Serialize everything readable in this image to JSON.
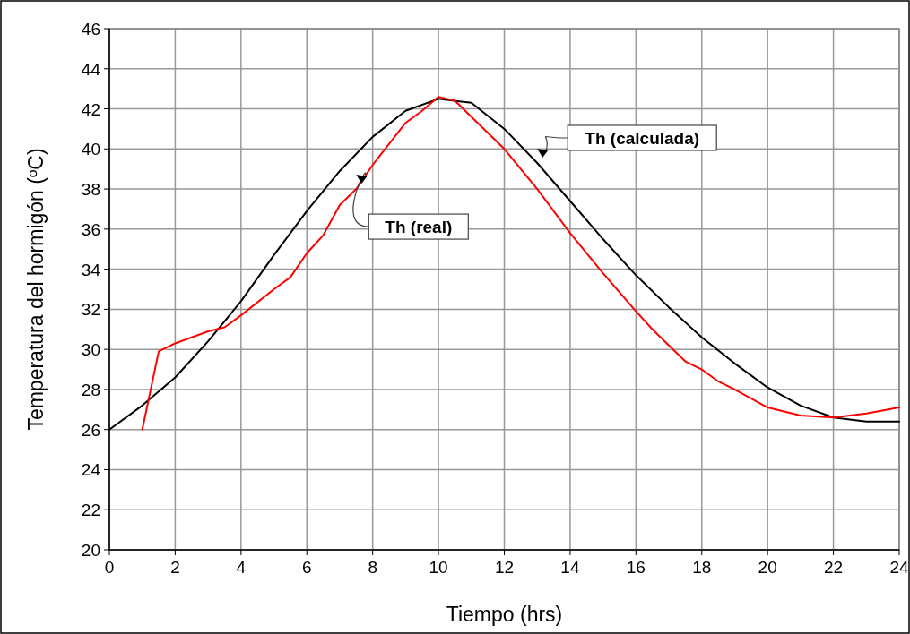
{
  "chart_data": {
    "type": "line",
    "xlabel": "Tiempo (hrs)",
    "ylabel": "Temperatura del hormigón (ºC)",
    "xlim": [
      0,
      24
    ],
    "ylim": [
      20,
      46
    ],
    "xticks": [
      0,
      2,
      4,
      6,
      8,
      10,
      12,
      14,
      16,
      18,
      20,
      22,
      24
    ],
    "yticks": [
      20,
      22,
      24,
      26,
      28,
      30,
      32,
      34,
      36,
      38,
      40,
      42,
      44,
      46
    ],
    "grid": true,
    "marker": "none",
    "line_style": "solid",
    "series": [
      {
        "name": "Th (calculada)",
        "color": "#000000",
        "x": [
          0,
          1,
          2,
          3,
          4,
          5,
          6,
          7,
          8,
          9,
          10,
          11,
          12,
          13,
          14,
          15,
          16,
          17,
          18,
          19,
          20,
          21,
          22,
          23,
          24
        ],
        "values": [
          26.0,
          27.2,
          28.6,
          30.4,
          32.4,
          34.7,
          36.9,
          38.9,
          40.6,
          41.9,
          42.5,
          42.3,
          41.0,
          39.3,
          37.4,
          35.5,
          33.7,
          32.1,
          30.6,
          29.3,
          28.1,
          27.2,
          26.6,
          26.4,
          26.4
        ]
      },
      {
        "name": "Th (real)",
        "color": "#ff0000",
        "x": [
          1,
          1.5,
          2,
          3,
          3.5,
          4,
          5,
          5.5,
          6,
          6.5,
          7,
          7.5,
          8,
          9,
          9.5,
          10,
          10.5,
          11,
          12,
          13,
          14,
          15,
          16,
          16.5,
          17,
          17.5,
          18,
          18.5,
          19,
          20,
          21,
          22,
          23,
          24
        ],
        "values": [
          26.0,
          29.9,
          30.3,
          30.9,
          31.1,
          31.7,
          33.0,
          33.6,
          34.8,
          35.7,
          37.2,
          38.0,
          39.2,
          41.3,
          41.9,
          42.6,
          42.4,
          41.6,
          40.0,
          38.0,
          35.8,
          33.8,
          31.9,
          31.0,
          30.2,
          29.4,
          29.0,
          28.4,
          28.0,
          27.1,
          26.7,
          26.6,
          26.8,
          27.1
        ]
      }
    ]
  }
}
